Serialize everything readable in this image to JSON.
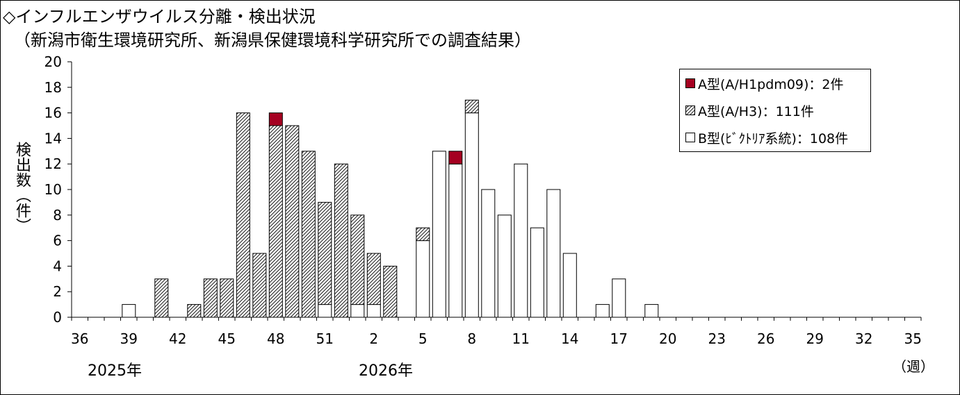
{
  "title_line1": "◇インフルエンザウイルス分離・検出状況",
  "title_line2": "（新潟市衛生環境研究所、新潟県保健環境科学研究所での調査結果）",
  "ylabel": "検出数（件）",
  "year_labels": [
    "2025年",
    "2026年"
  ],
  "x_unit": "（週）",
  "colors": {
    "h1": "#a50021",
    "h3_hatch": "#000000",
    "b": "#ffffff",
    "axis": "#000000"
  },
  "legend": [
    {
      "label": "A型(A/H1pdm09)：2件",
      "key": "h1"
    },
    {
      "label": "A型(A/H3)：111件",
      "key": "h3"
    },
    {
      "label": "B型(ﾋﾞｸﾄﾘｱ系統)：108件",
      "key": "b"
    }
  ],
  "chart_data": {
    "type": "bar",
    "stacked": true,
    "categories": [
      "36",
      "37",
      "38",
      "39",
      "40",
      "41",
      "42",
      "43",
      "44",
      "45",
      "46",
      "47",
      "48",
      "49",
      "50",
      "51",
      "52",
      "1",
      "2",
      "3",
      "4",
      "5",
      "6",
      "7",
      "8",
      "9",
      "10",
      "11",
      "12",
      "13",
      "14",
      "15",
      "16",
      "17",
      "18",
      "19",
      "20",
      "21",
      "22",
      "23",
      "24",
      "25",
      "26",
      "27",
      "28",
      "29",
      "30",
      "31",
      "32",
      "33",
      "34",
      "35"
    ],
    "tick_labels": [
      "36",
      "39",
      "42",
      "45",
      "48",
      "51",
      "2",
      "5",
      "8",
      "11",
      "14",
      "17",
      "20",
      "23",
      "26",
      "29",
      "32",
      "35"
    ],
    "ylim": [
      0,
      20
    ],
    "yticks": [
      "0",
      "2",
      "4",
      "6",
      "8",
      "10",
      "12",
      "14",
      "16",
      "18",
      "20"
    ],
    "series": [
      {
        "name": "B型(ﾋﾞｸﾄﾘｱ系統)",
        "key": "b",
        "values": [
          0,
          0,
          0,
          1,
          0,
          0,
          0,
          0,
          0,
          0,
          0,
          0,
          0,
          0,
          0,
          1,
          0,
          1,
          1,
          0,
          0,
          6,
          13,
          12,
          16,
          10,
          8,
          12,
          7,
          10,
          5,
          0,
          1,
          3,
          0,
          1,
          0,
          0,
          0,
          0,
          0,
          0,
          0,
          0,
          0,
          0,
          0,
          0,
          0,
          0,
          0,
          0
        ]
      },
      {
        "name": "A型(A/H3)",
        "key": "h3",
        "values": [
          0,
          0,
          0,
          0,
          0,
          3,
          0,
          1,
          3,
          3,
          16,
          5,
          15,
          15,
          13,
          8,
          12,
          7,
          4,
          4,
          0,
          1,
          0,
          0,
          1,
          0,
          0,
          0,
          0,
          0,
          0,
          0,
          0,
          0,
          0,
          0,
          0,
          0,
          0,
          0,
          0,
          0,
          0,
          0,
          0,
          0,
          0,
          0,
          0,
          0,
          0,
          0
        ]
      },
      {
        "name": "A型(A/H1pdm09)",
        "key": "h1",
        "values": [
          0,
          0,
          0,
          0,
          0,
          0,
          0,
          0,
          0,
          0,
          0,
          0,
          1,
          0,
          0,
          0,
          0,
          0,
          0,
          0,
          0,
          0,
          0,
          1,
          0,
          0,
          0,
          0,
          0,
          0,
          0,
          0,
          0,
          0,
          0,
          0,
          0,
          0,
          0,
          0,
          0,
          0,
          0,
          0,
          0,
          0,
          0,
          0,
          0,
          0,
          0,
          0
        ]
      }
    ]
  }
}
